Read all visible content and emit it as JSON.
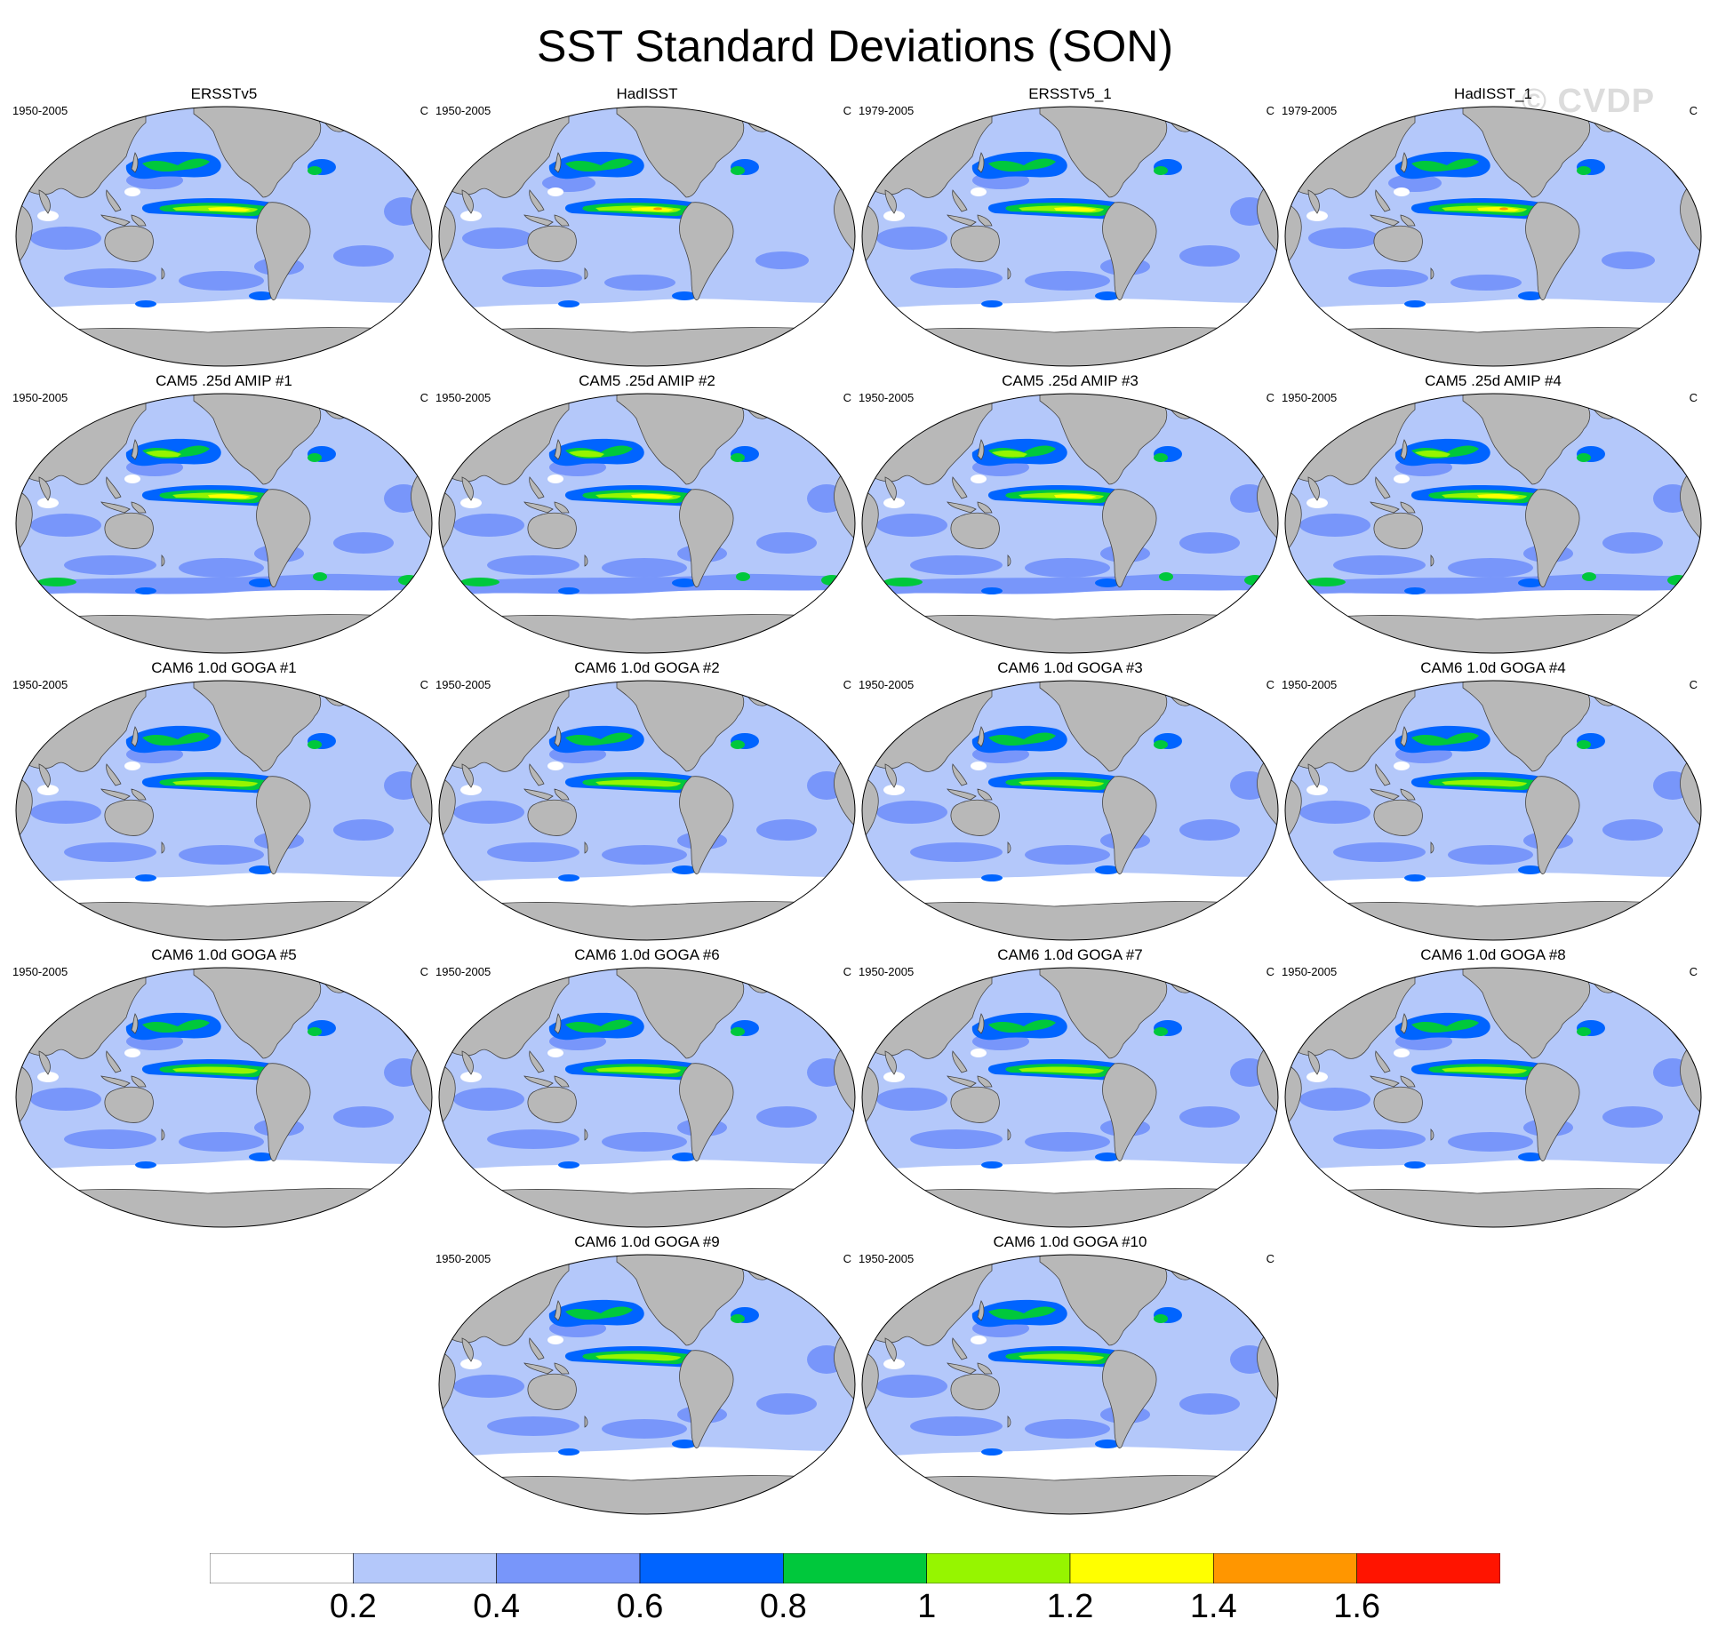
{
  "title": "SST Standard Deviations (SON)",
  "watermark": "© CVDP",
  "unit": "C",
  "panels": [
    {
      "title": "ERSSTv5",
      "years": "1950-2005",
      "unit": "C",
      "kind": "obs"
    },
    {
      "title": "HadISST",
      "years": "1950-2005",
      "unit": "C",
      "kind": "obs_had"
    },
    {
      "title": "ERSSTv5_1",
      "years": "1979-2005",
      "unit": "C",
      "kind": "obs"
    },
    {
      "title": "HadISST_1",
      "years": "1979-2005",
      "unit": "C",
      "kind": "obs_had"
    },
    {
      "title": "CAM5 .25d AMIP #1",
      "years": "1950-2005",
      "unit": "C",
      "kind": "cam5"
    },
    {
      "title": "CAM5 .25d AMIP #2",
      "years": "1950-2005",
      "unit": "C",
      "kind": "cam5"
    },
    {
      "title": "CAM5 .25d AMIP #3",
      "years": "1950-2005",
      "unit": "C",
      "kind": "cam5"
    },
    {
      "title": "CAM5 .25d AMIP #4",
      "years": "1950-2005",
      "unit": "C",
      "kind": "cam5"
    },
    {
      "title": "CAM6 1.0d GOGA #1",
      "years": "1950-2005",
      "unit": "C",
      "kind": "cam6"
    },
    {
      "title": "CAM6 1.0d GOGA #2",
      "years": "1950-2005",
      "unit": "C",
      "kind": "cam6"
    },
    {
      "title": "CAM6 1.0d GOGA #3",
      "years": "1950-2005",
      "unit": "C",
      "kind": "cam6"
    },
    {
      "title": "CAM6 1.0d GOGA #4",
      "years": "1950-2005",
      "unit": "C",
      "kind": "cam6"
    },
    {
      "title": "CAM6 1.0d GOGA #5",
      "years": "1950-2005",
      "unit": "C",
      "kind": "cam6"
    },
    {
      "title": "CAM6 1.0d GOGA #6",
      "years": "1950-2005",
      "unit": "C",
      "kind": "cam6"
    },
    {
      "title": "CAM6 1.0d GOGA #7",
      "years": "1950-2005",
      "unit": "C",
      "kind": "cam6"
    },
    {
      "title": "CAM6 1.0d GOGA #8",
      "years": "1950-2005",
      "unit": "C",
      "kind": "cam6"
    },
    {
      "title": "CAM6 1.0d GOGA #9",
      "years": "1950-2005",
      "unit": "C",
      "kind": "cam6"
    },
    {
      "title": "CAM6 1.0d GOGA #10",
      "years": "1950-2005",
      "unit": "C",
      "kind": "cam6"
    }
  ],
  "colorbar": {
    "colors": [
      "#ffffff",
      "#b4c8fa",
      "#7896fa",
      "#0064ff",
      "#00c83c",
      "#96f500",
      "#ffff00",
      "#ff9600",
      "#ff1400"
    ],
    "labels": [
      "0.2",
      "0.4",
      "0.6",
      "0.8",
      "1",
      "1.2",
      "1.4",
      "1.6"
    ]
  },
  "colors": {
    "land": "#b8b8b8",
    "coast": "#444444"
  }
}
